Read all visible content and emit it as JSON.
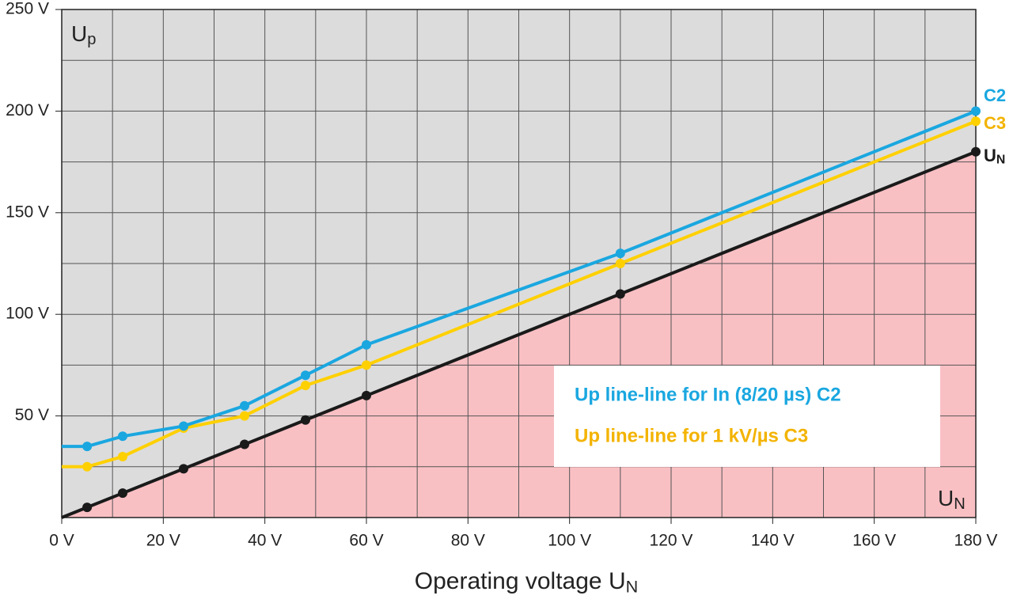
{
  "chart_data": {
    "type": "line",
    "x_label": "Operating voltage U",
    "x_label_sub": "N",
    "y_label": "U",
    "y_label_sub": "p",
    "corner_label": "U",
    "corner_label_sub": "N",
    "x": [
      0,
      5,
      12,
      24,
      36,
      48,
      60,
      110,
      180
    ],
    "series": [
      {
        "name": "Up line-line for In (8/20 µs) C2",
        "color": "#1aa7e0",
        "end_label": "C2",
        "values": [
          35,
          35,
          40,
          45,
          55,
          70,
          85,
          130,
          200
        ]
      },
      {
        "name": "Up line-line for 1 kV/µs C3",
        "color": "#ffd000",
        "label_color": "#f3b300",
        "end_label": "C3",
        "values": [
          25,
          25,
          30,
          44,
          50,
          65,
          75,
          125,
          195
        ]
      },
      {
        "color": "#1a1a1a",
        "end_label": "U",
        "end_label_sub": "N",
        "fill_below": "#f9c0c4",
        "values": [
          0,
          5,
          12,
          24,
          36,
          48,
          60,
          110,
          180
        ]
      }
    ],
    "xlim": [
      0,
      180
    ],
    "ylim": [
      0,
      250
    ],
    "xticks": [
      {
        "value": 0,
        "label": "0 V"
      },
      {
        "value": 20,
        "label": "20 V"
      },
      {
        "value": 40,
        "label": "40 V"
      },
      {
        "value": 60,
        "label": "60 V"
      },
      {
        "value": 80,
        "label": "80 V"
      },
      {
        "value": 100,
        "label": "100 V"
      },
      {
        "value": 120,
        "label": "120 V"
      },
      {
        "value": 140,
        "label": "140 V"
      },
      {
        "value": 160,
        "label": "160 V"
      },
      {
        "value": 180,
        "label": "180 V"
      }
    ],
    "yticks": [
      {
        "value": 50,
        "label": "50 V"
      },
      {
        "value": 100,
        "label": "100 V"
      },
      {
        "value": 150,
        "label": "150 V"
      },
      {
        "value": 200,
        "label": "200 V"
      },
      {
        "value": 250,
        "label": "250 V"
      }
    ],
    "xgrid": [
      10,
      20,
      30,
      40,
      50,
      60,
      70,
      80,
      90,
      100,
      110,
      120,
      130,
      140,
      150,
      160,
      170
    ],
    "ygrid": [
      25,
      50,
      75,
      100,
      125,
      150,
      175,
      200,
      225
    ],
    "background": "#dcdcdd"
  }
}
